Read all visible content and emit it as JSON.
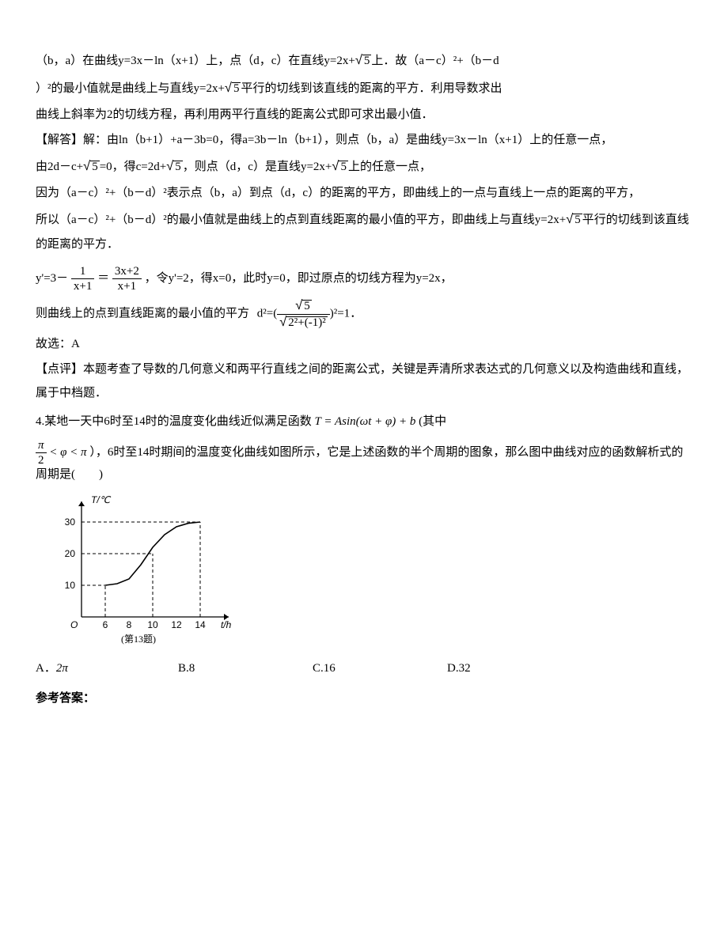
{
  "analysis": {
    "l1": "（b，a）在曲线y=3x－ln（x+1）上，点（d，c）在直线y=2x+",
    "l1b": "上．故（a－c）²+（b－d",
    "l2a": "）²的最小值就是曲线上与直线y=2x+",
    "l2b": "平行的切线到该直线的距离的平方．利用导数求出",
    "l3": "曲线上斜率为2的切线方程，再利用两平行直线的距离公式即可求出最小值．"
  },
  "solve": {
    "s1": "【解答】解：由ln（b+1）+a－3b=0，得a=3b－ln（b+1），则点（b，a）是曲线y=3x－ln（x+1）上的任意一点，",
    "s2a": "由2d－c+",
    "s2b": "=0，得c=2d+",
    "s2c": "，则点（d，c）是直线y=2x+",
    "s2d": "上的任意一点，",
    "s3": "因为（a－c）²+（b－d）²表示点（b，a）到点（d，c）的距离的平方，即曲线上的一点与直线上一点的距离的平方，",
    "s4a": "所以（a－c）²+（b－d）²的最小值就是曲线上的点到直线距离的最小值的平方，即曲线上与直线y=2x+",
    "s4b": "平行的切线到该直线的距离的平方．",
    "deriv": "y'=3－",
    "deriv_eq": "＝",
    "deriv_tail": "，令y'=2，得x=0，此时y=0，即过原点的切线方程为y=2x，",
    "d2_lead": "则曲线上的点到直线距离的最小值的平方",
    "d2_tail": "．",
    "ans": "故选：A",
    "comment": "【点评】本题考查了导数的几何意义和两平行直线之间的距离公式，关键是弄清所求表达式的几何意义以及构造曲线和直线，属于中档题．"
  },
  "q4": {
    "stem_a": "4.某地一天中6时至14时的温度变化曲线近似满足函数",
    "stem_formula": "T = Asin(ωt + φ) + b",
    "stem_b": "(其中",
    "range": "π/2 < φ < π",
    "stem_c": "），6时至14时期间的温度变化曲线如图所示，它是上述函数的半个周期的图象，那么图中曲线对应的函数解析式的周期是(　　)",
    "options": {
      "A": "A．",
      "A_val": "2π",
      "B": "B.8",
      "C": "C.16",
      "D": "D.32"
    },
    "ref": "参考答案："
  },
  "chart": {
    "y_label": "T/℃",
    "x_label": "t/h",
    "caption": "(第13题)",
    "y_ticks": [
      10,
      20,
      30
    ],
    "x_ticks": [
      6,
      8,
      10,
      12,
      14
    ],
    "curve": [
      {
        "x": 6,
        "y": 10
      },
      {
        "x": 7,
        "y": 10.5
      },
      {
        "x": 8,
        "y": 12
      },
      {
        "x": 9,
        "y": 16.5
      },
      {
        "x": 10,
        "y": 22
      },
      {
        "x": 11,
        "y": 26
      },
      {
        "x": 12,
        "y": 28.5
      },
      {
        "x": 13,
        "y": 29.6
      },
      {
        "x": 14,
        "y": 30
      }
    ],
    "colors": {
      "axis": "#000000",
      "curve": "#000000",
      "dash": "#000000",
      "bg": "#ffffff"
    }
  },
  "frac1": {
    "num": "1",
    "den": "x+1"
  },
  "frac2": {
    "num": "3x+2",
    "den": "x+1"
  },
  "sqrt5": "5",
  "d2": {
    "lhs": "d²=(",
    "num": "√5",
    "den_a": "2²+(-1)²",
    "rhs": ")²=1"
  }
}
